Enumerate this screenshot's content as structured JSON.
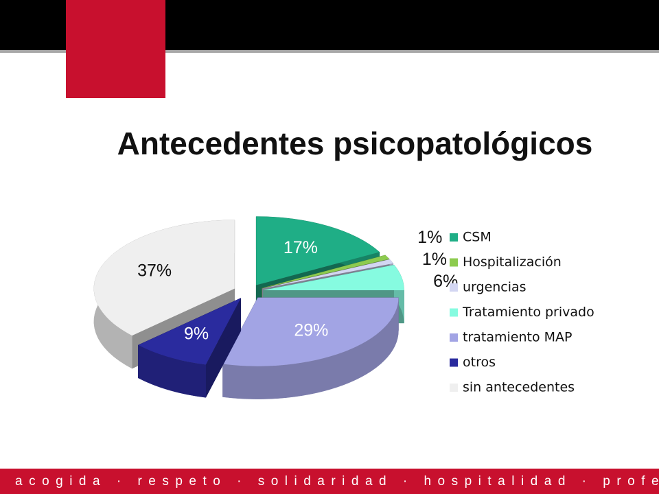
{
  "chart_data": {
    "type": "pie",
    "title": "Antecedentes psicopatológicos",
    "categories": [
      "CSM",
      "Hospitalización",
      "urgencias",
      "Tratamiento privado",
      "tratamiento MAP",
      "otros",
      "sin antecedentes"
    ],
    "values": [
      17,
      1,
      1,
      6,
      29,
      9,
      37
    ],
    "value_labels": [
      "17%",
      "1%",
      "1%",
      "6%",
      "29%",
      "9%",
      "37%"
    ],
    "colors": [
      "#1fae86",
      "#8dcb4f",
      "#d3d6f2",
      "#86fbe0",
      "#a2a4e4",
      "#2a2b9e",
      "#efefef"
    ],
    "legend": "right"
  },
  "footer": "acogida · respeto · solidaridad · hospitalidad · profesionalidad"
}
